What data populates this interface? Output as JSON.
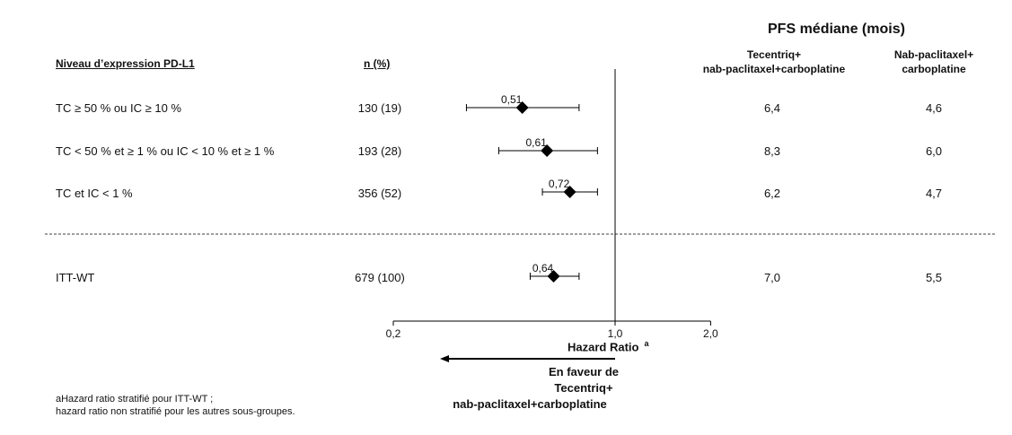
{
  "header": {
    "pfs_title": "PFS médiane (mois)",
    "col_subgroup": "Niveau d’expression PD-L1",
    "col_n": "n (%)",
    "col_arm1_line1": "Tecentriq+",
    "col_arm1_line2": "nab-paclitaxel+carboplatine",
    "col_arm2_line1": "Nab-paclitaxel+",
    "col_arm2_line2": "carboplatine"
  },
  "rows": [
    {
      "label": "TC ≥ 50 % ou IC ≥ 10 %",
      "n": "130 (19)",
      "hr_label": "0,51",
      "pfs_arm1": "6,4",
      "pfs_arm2": "4,6"
    },
    {
      "label": "TC < 50 % et ≥ 1 % ou IC < 10 % et ≥ 1 %",
      "n": "193 (28)",
      "hr_label": "0,61",
      "pfs_arm1": "8,3",
      "pfs_arm2": "6,0"
    },
    {
      "label": "TC et IC < 1 %",
      "n": "356 (52)",
      "hr_label": "0,72",
      "pfs_arm1": "6,2",
      "pfs_arm2": "4,7"
    },
    {
      "label": "ITT-WT",
      "n": "679 (100)",
      "hr_label": "0,64",
      "pfs_arm1": "7,0",
      "pfs_arm2": "5,5"
    }
  ],
  "axis": {
    "tick_labels": [
      "0,2",
      "1,0",
      "2,0"
    ],
    "title": "Hazard Ratio",
    "title_sup": "a"
  },
  "favour": {
    "line1": "En faveur de",
    "line2": "Tecentriq+",
    "line3": "nab-paclitaxel+carboplatine"
  },
  "footnote": {
    "line1": "aHazard ratio stratifié pour ITT-WT ;",
    "line2": "hazard ratio non stratifié pour les autres sous-groupes."
  },
  "chart_data": {
    "type": "scatter",
    "subtype": "forest",
    "x_scale": "log",
    "xlim": [
      0.2,
      2.0
    ],
    "xticks": [
      0.2,
      1.0,
      2.0
    ],
    "reference_line": 1.0,
    "categories": [
      "TC ≥ 50 % ou IC ≥ 10 %",
      "TC < 50 % et ≥ 1 % ou IC < 10 % et ≥ 1 %",
      "TC et IC < 1 %",
      "ITT-WT"
    ],
    "hr": [
      0.51,
      0.61,
      0.72,
      0.64
    ],
    "ci_low": [
      0.34,
      0.43,
      0.59,
      0.54
    ],
    "ci_high": [
      0.77,
      0.88,
      0.88,
      0.77
    ],
    "xlabel": "Hazard Ratio",
    "colors": {
      "marker": "#000000",
      "line": "#000000"
    }
  }
}
